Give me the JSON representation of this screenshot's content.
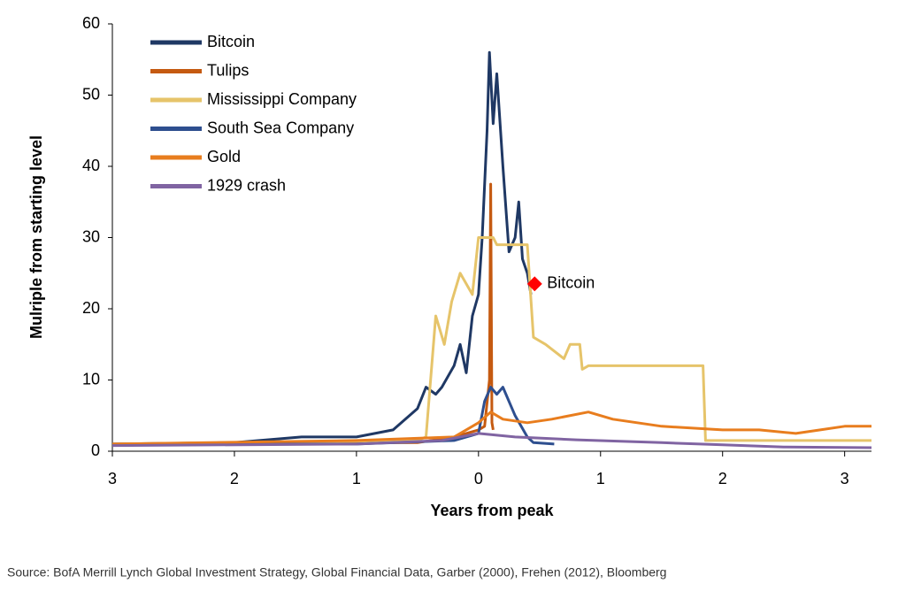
{
  "chart_data": {
    "type": "line",
    "ylabel": "Mulriple from starting level",
    "xlabel": "Years from peak",
    "source": "Source:  BofA Merrill Lynch Global Investment Strategy, Global Financial Data, Garber (2000), Frehen (2012),  Bloomberg",
    "xlim": [
      -3,
      3.22
    ],
    "ylim": [
      0,
      60
    ],
    "xticks": [
      {
        "value": -3,
        "label": "3"
      },
      {
        "value": -2,
        "label": "2"
      },
      {
        "value": -1,
        "label": "1"
      },
      0,
      1,
      2,
      3
    ],
    "yticks": [
      0,
      10,
      20,
      30,
      40,
      50,
      60
    ],
    "grid": false,
    "legend": "upper left",
    "series": [
      {
        "name": "Bitcoin",
        "color": "#1f3864",
        "x": [
          -3,
          -2,
          -1.45,
          -1,
          -0.7,
          -0.5,
          -0.43,
          -0.35,
          -0.3,
          -0.2,
          -0.15,
          -0.1,
          -0.05,
          0,
          0.03,
          0.07,
          0.09,
          0.12,
          0.15,
          0.2,
          0.25,
          0.3,
          0.33,
          0.36,
          0.4,
          0.43
        ],
        "values": [
          1,
          1.2,
          2,
          2,
          3,
          6,
          9,
          8,
          9,
          12,
          15,
          11,
          19,
          22,
          30,
          45,
          56,
          46,
          53,
          40,
          28,
          30,
          35,
          27,
          25,
          22
        ]
      },
      {
        "name": "Tulips",
        "color": "#c55a11",
        "x": [
          -3,
          -0.5,
          -0.2,
          0,
          0.05,
          0.09,
          0.1,
          0.11,
          0.12
        ],
        "values": [
          1,
          1.2,
          2,
          3,
          3.5,
          10,
          37.5,
          4,
          3
        ]
      },
      {
        "name": "Mississippi Company",
        "color": "#e6c46a",
        "x": [
          -3,
          -0.5,
          -0.43,
          -0.35,
          -0.28,
          -0.22,
          -0.15,
          -0.05,
          0,
          0.12,
          0.15,
          0.33,
          0.4,
          0.45,
          0.55,
          0.7,
          0.75,
          0.83,
          0.85,
          0.9,
          1.84,
          1.86,
          3.22
        ],
        "values": [
          1,
          1.5,
          2,
          19,
          15,
          21,
          25,
          22,
          30,
          30,
          29,
          29,
          29,
          16,
          15,
          13,
          15,
          15,
          11.5,
          12,
          12,
          1.5,
          1.5
        ]
      },
      {
        "name": "South Sea Company",
        "color": "#2e4f8f",
        "x": [
          -3,
          -1,
          -0.2,
          0,
          0.05,
          0.1,
          0.15,
          0.2,
          0.3,
          0.4,
          0.45,
          0.62
        ],
        "values": [
          1,
          1,
          1.5,
          2.5,
          7,
          9,
          8,
          9,
          5,
          2,
          1.2,
          1
        ]
      },
      {
        "name": "Gold",
        "color": "#e87d1e",
        "x": [
          -3,
          -1,
          -0.2,
          0,
          0.1,
          0.2,
          0.4,
          0.6,
          0.9,
          1.1,
          1.5,
          2,
          2.3,
          2.6,
          2.8,
          3,
          3.22
        ],
        "values": [
          1,
          1.5,
          2,
          4,
          5.5,
          4.5,
          4,
          4.5,
          5.5,
          4.5,
          3.5,
          3,
          3,
          2.5,
          3,
          3.5,
          3.5
        ]
      },
      {
        "name": "1929 crash",
        "color": "#8064a2",
        "x": [
          -3,
          -1,
          -0.3,
          0,
          0.3,
          0.8,
          1.5,
          2,
          2.5,
          3.22
        ],
        "values": [
          0.8,
          1,
          1.5,
          2.5,
          2,
          1.6,
          1.2,
          0.9,
          0.6,
          0.5
        ]
      }
    ],
    "annotation": {
      "text": "Bitcoin",
      "x": 0.46,
      "y": 23.5,
      "color": "#ff0000"
    }
  }
}
